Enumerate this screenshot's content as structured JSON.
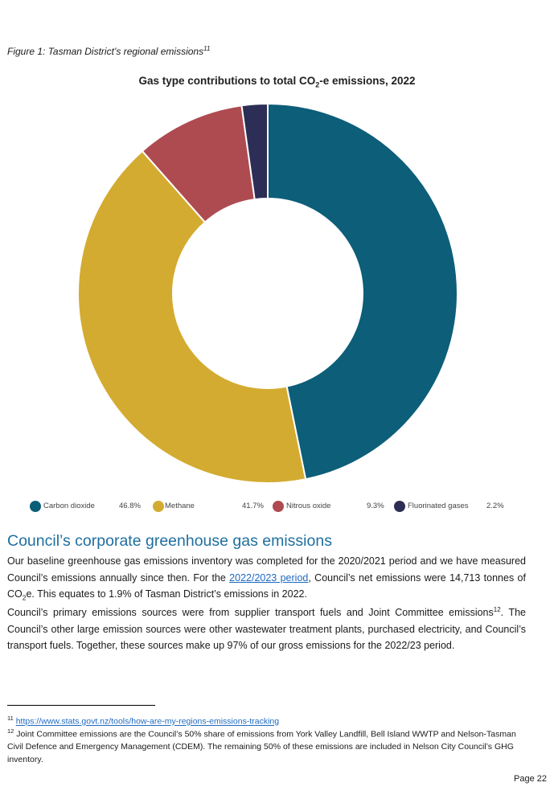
{
  "caption": {
    "text": "Figure 1: Tasman District’s regional emissions",
    "ref": "11"
  },
  "chart_data": {
    "type": "pie",
    "title_prefix": "Gas type contributions to total CO",
    "title_sub": "2",
    "title_suffix": "-e emissions, 2022",
    "categories": [
      "Carbon dioxide",
      "Methane",
      "Nitrous oxide",
      "Fluorinated gases"
    ],
    "values": [
      46.8,
      41.7,
      9.3,
      2.2
    ],
    "value_labels": [
      "46.8%",
      "41.7%",
      "9.3%",
      "2.2%"
    ],
    "colors": [
      "#0c5e79",
      "#d3ab30",
      "#ad4b51",
      "#2d2e56"
    ],
    "hole": "donut",
    "legend_position": "bottom"
  },
  "section": {
    "heading": "Council’s corporate greenhouse gas emissions",
    "p1_a": "Our baseline greenhouse gas emissions inventory was completed for the 2020/2021 period and we have measured Council’s emissions annually since then. For the ",
    "p1_link": "2022/2023 period",
    "p1_b": ", Council’s net emissions were 14,713 tonnes of CO",
    "p1_sub": "2",
    "p1_c": "e. This equates to 1.9% of Tasman District’s emissions in 2022.",
    "p2_a": "Council’s primary emissions sources were from supplier transport fuels and Joint Committee emissions",
    "p2_ref": "12",
    "p2_b": ". The Council’s other large emission sources were other wastewater treatment plants, purchased electricity, and Council’s transport fuels. Together, these sources make up 97% of our gross emissions for the 2022/23 period."
  },
  "footnotes": [
    {
      "num": "11",
      "text": "https://www.stats.govt.nz/tools/how-are-my-regions-emissions-tracking"
    },
    {
      "num": "12",
      "text": "Joint Committee emissions are the Council’s 50% share of emissions from York Valley Landfill, Bell Island WWTP and Nelson-Tasman Civil Defence and Emergency Management (CDEM). The remaining 50% of these emissions are included in Nelson City Council’s GHG inventory."
    }
  ],
  "page": {
    "label": "Page 22"
  }
}
